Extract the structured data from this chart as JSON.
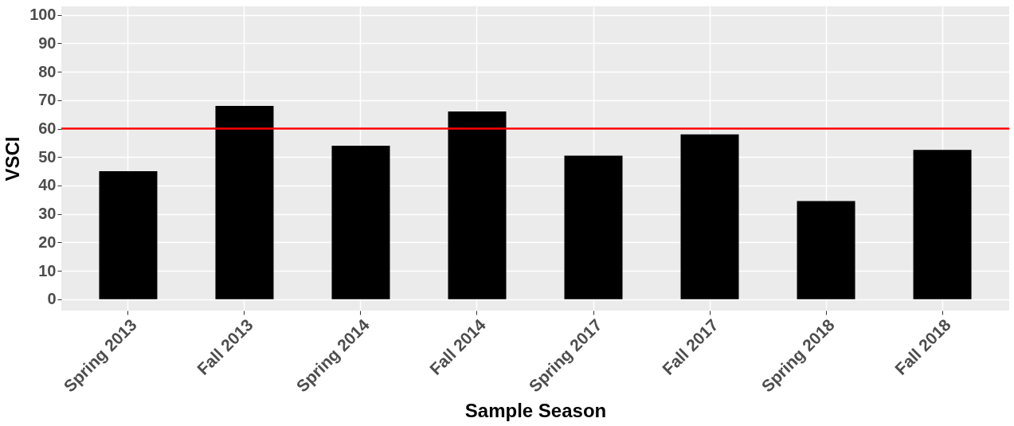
{
  "chart_data": {
    "type": "bar",
    "xlabel": "Sample Season",
    "ylabel": "VSCI",
    "categories": [
      "Spring 2013",
      "Fall 2013",
      "Spring 2014",
      "Fall 2014",
      "Spring 2017",
      "Fall 2017",
      "Spring 2018",
      "Fall 2018"
    ],
    "values": [
      45,
      68,
      54,
      66,
      50.5,
      58,
      34.5,
      52.5
    ],
    "color": "#000000",
    "ylim": [
      -4,
      103
    ],
    "yticks": [
      0,
      10,
      20,
      30,
      40,
      50,
      60,
      70,
      80,
      90,
      100
    ],
    "grid": true,
    "ref_lines": [
      {
        "axis": "y",
        "value": 60,
        "color": "#ff0000"
      }
    ]
  }
}
